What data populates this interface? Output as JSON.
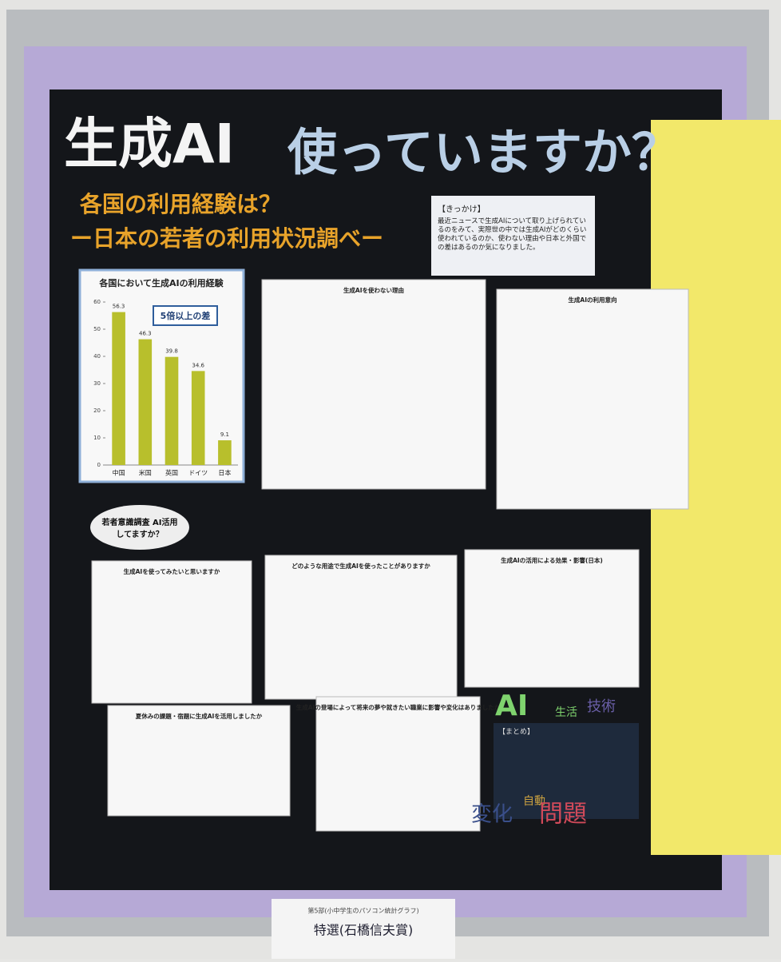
{
  "poster": {
    "title_a": "生成AI",
    "title_b": "使っていますか？",
    "subtitle": "各国の利用経験は？",
    "subtitle2": "ー日本の若者の利用状況調べー",
    "trigger_heading": "【きっかけ】",
    "trigger_text": "最近ニュースで生成AIについて取り上げられているのをみて、実際世の中では生成AIがどのくらい使われているのか、使わない理由や日本と外国での差はあるのか気になりました。",
    "bubble": "若者意識調査 AI活用してますか？",
    "chart1": {
      "title": "各国において生成AIの利用経験",
      "categories": [
        "中国",
        "米国",
        "英国",
        "ドイツ",
        "日本"
      ],
      "values": [
        56.3,
        46.3,
        39.8,
        34.6,
        9.1
      ],
      "ylim": [
        0,
        60
      ],
      "yticks": [
        0,
        10,
        20,
        30,
        40,
        50,
        60
      ],
      "color": "#b8bf2c",
      "callout": "5倍以上の差"
    },
    "panels": [
      "生成AIを使わない理由",
      "生成AIの利用意向",
      "生成AIを使ってみたいと思いますか",
      "どのような用途で生成AIを使ったことがありますか",
      "生成AIの活用による効果・影響(日本)",
      "夏休みの課題・宿題に生成AIを活用しましたか",
      "生成AIの登場によって将来の夢や就きたい職業に影響や変化はありましたか"
    ],
    "summary_heading": "【まとめ】",
    "words": [
      "AI",
      "生活",
      "技術",
      "変化",
      "自動",
      "問題"
    ],
    "plaque_small": "第5部(小中学生のパソコン統計グラフ)",
    "plaque": "特選(石橋信夫賞)"
  }
}
